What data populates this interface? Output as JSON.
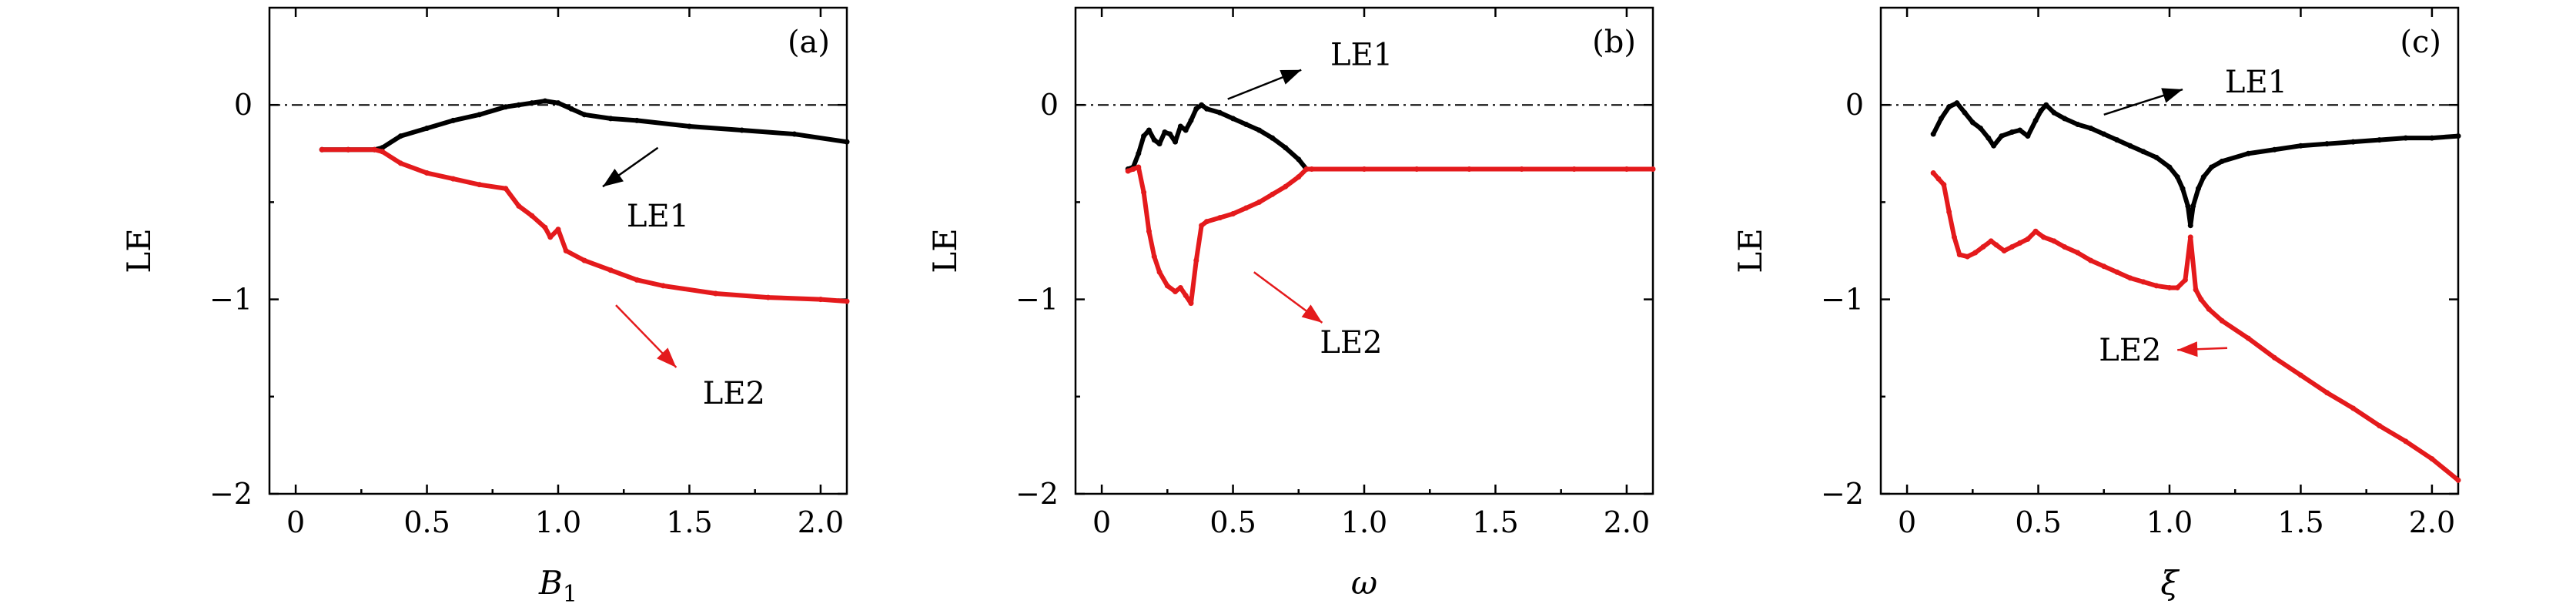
{
  "chart_data": [
    {
      "type": "line",
      "panel_label": "(a)",
      "xlabel": "B",
      "xlabel_sub": "1",
      "xlabel_italic": true,
      "ylabel": "LE",
      "xlim": [
        -0.1,
        2.1
      ],
      "ylim": [
        -2,
        0.5
      ],
      "xticks": [
        0,
        0.5,
        1.0,
        1.5,
        2.0
      ],
      "xtick_labels": [
        "0",
        "0.5",
        "1.0",
        "1.5",
        "2.0"
      ],
      "yticks": [
        -2,
        -1,
        0
      ],
      "ytick_labels": [
        "−2",
        "−1",
        "0"
      ],
      "reference_line_y": 0,
      "series": [
        {
          "name": "LE1",
          "color": "#000000",
          "x": [
            0.1,
            0.2,
            0.3,
            0.33,
            0.4,
            0.5,
            0.6,
            0.7,
            0.8,
            0.85,
            0.9,
            0.95,
            1.0,
            1.05,
            1.1,
            1.2,
            1.3,
            1.5,
            1.7,
            1.9,
            2.1
          ],
          "y": [
            -0.23,
            -0.23,
            -0.23,
            -0.22,
            -0.16,
            -0.12,
            -0.08,
            -0.05,
            -0.01,
            0.0,
            0.01,
            0.02,
            0.01,
            -0.02,
            -0.05,
            -0.07,
            -0.08,
            -0.11,
            -0.13,
            -0.15,
            -0.19
          ]
        },
        {
          "name": "LE2",
          "color": "#e41a1c",
          "x": [
            0.1,
            0.2,
            0.3,
            0.33,
            0.4,
            0.5,
            0.6,
            0.7,
            0.8,
            0.85,
            0.9,
            0.95,
            0.97,
            1.0,
            1.03,
            1.1,
            1.2,
            1.3,
            1.4,
            1.6,
            1.8,
            2.0,
            2.1
          ],
          "y": [
            -0.23,
            -0.23,
            -0.23,
            -0.24,
            -0.3,
            -0.35,
            -0.38,
            -0.41,
            -0.43,
            -0.52,
            -0.57,
            -0.63,
            -0.68,
            -0.64,
            -0.75,
            -0.8,
            -0.85,
            -0.9,
            -0.93,
            -0.97,
            -0.99,
            -1.0,
            -1.01
          ]
        }
      ],
      "annotations": [
        {
          "text": "LE1",
          "color": "#000000",
          "text_at": [
            1.38,
            -0.57
          ],
          "arrow_from": [
            1.38,
            -0.22
          ],
          "arrow_to": [
            1.17,
            -0.42
          ]
        },
        {
          "text": "LE2",
          "color": "#e41a1c",
          "text_at": [
            1.67,
            -1.48
          ],
          "arrow_from": [
            1.22,
            -1.03
          ],
          "arrow_to": [
            1.45,
            -1.35
          ]
        }
      ]
    },
    {
      "type": "line",
      "panel_label": "(b)",
      "xlabel": "ω",
      "xlabel_italic": true,
      "ylabel": "LE",
      "xlim": [
        -0.1,
        2.1
      ],
      "ylim": [
        -2,
        0.5
      ],
      "xticks": [
        0,
        0.5,
        1.0,
        1.5,
        2.0
      ],
      "xtick_labels": [
        "0",
        "0.5",
        "1.0",
        "1.5",
        "2.0"
      ],
      "yticks": [
        -2,
        -1,
        0
      ],
      "ytick_labels": [
        "−2",
        "−1",
        "0"
      ],
      "reference_line_y": 0,
      "series": [
        {
          "name": "LE1",
          "color": "#000000",
          "x": [
            0.1,
            0.12,
            0.14,
            0.16,
            0.18,
            0.2,
            0.22,
            0.24,
            0.26,
            0.28,
            0.3,
            0.32,
            0.34,
            0.36,
            0.38,
            0.4,
            0.45,
            0.5,
            0.55,
            0.6,
            0.65,
            0.7,
            0.75,
            0.78
          ],
          "y": [
            -0.33,
            -0.32,
            -0.25,
            -0.16,
            -0.13,
            -0.18,
            -0.2,
            -0.14,
            -0.15,
            -0.19,
            -0.11,
            -0.13,
            -0.08,
            -0.02,
            0.0,
            -0.02,
            -0.04,
            -0.07,
            -0.1,
            -0.13,
            -0.17,
            -0.22,
            -0.28,
            -0.33
          ]
        },
        {
          "name": "LE2",
          "color": "#e41a1c",
          "x": [
            0.1,
            0.12,
            0.14,
            0.16,
            0.18,
            0.2,
            0.22,
            0.25,
            0.28,
            0.3,
            0.32,
            0.34,
            0.36,
            0.38,
            0.4,
            0.45,
            0.5,
            0.55,
            0.6,
            0.65,
            0.7,
            0.75,
            0.78,
            0.8,
            1.0,
            1.2,
            1.4,
            1.6,
            1.8,
            2.0,
            2.1
          ],
          "y": [
            -0.34,
            -0.33,
            -0.32,
            -0.45,
            -0.65,
            -0.78,
            -0.86,
            -0.93,
            -0.96,
            -0.94,
            -0.98,
            -1.02,
            -0.8,
            -0.62,
            -0.6,
            -0.58,
            -0.56,
            -0.53,
            -0.5,
            -0.46,
            -0.42,
            -0.37,
            -0.33,
            -0.33,
            -0.33,
            -0.33,
            -0.33,
            -0.33,
            -0.33,
            -0.33,
            -0.33
          ]
        }
      ],
      "annotations": [
        {
          "text": "LE1",
          "color": "#000000",
          "text_at": [
            0.99,
            0.26
          ],
          "arrow_from": [
            0.48,
            0.03
          ],
          "arrow_to": [
            0.76,
            0.18
          ]
        },
        {
          "text": "LE2",
          "color": "#e41a1c",
          "text_at": [
            0.95,
            -1.22
          ],
          "arrow_from": [
            0.58,
            -0.86
          ],
          "arrow_to": [
            0.84,
            -1.12
          ]
        }
      ]
    },
    {
      "type": "line",
      "panel_label": "(c)",
      "xlabel": "ξ",
      "xlabel_italic": true,
      "ylabel": "LE",
      "xlim": [
        -0.1,
        2.1
      ],
      "ylim": [
        -2,
        0.5
      ],
      "xticks": [
        0,
        0.5,
        1.0,
        1.5,
        2.0
      ],
      "xtick_labels": [
        "0",
        "0.5",
        "1.0",
        "1.5",
        "2.0"
      ],
      "yticks": [
        -2,
        -1,
        0
      ],
      "ytick_labels": [
        "−2",
        "−1",
        "0"
      ],
      "reference_line_y": 0,
      "series": [
        {
          "name": "LE1",
          "color": "#000000",
          "x": [
            0.1,
            0.13,
            0.16,
            0.19,
            0.22,
            0.25,
            0.28,
            0.31,
            0.33,
            0.36,
            0.4,
            0.43,
            0.46,
            0.49,
            0.51,
            0.53,
            0.56,
            0.6,
            0.65,
            0.7,
            0.75,
            0.8,
            0.85,
            0.9,
            0.95,
            1.0,
            1.03,
            1.05,
            1.07,
            1.08,
            1.09,
            1.11,
            1.13,
            1.16,
            1.2,
            1.3,
            1.4,
            1.5,
            1.6,
            1.7,
            1.8,
            1.9,
            2.0,
            2.1
          ],
          "y": [
            -0.15,
            -0.07,
            -0.01,
            0.01,
            -0.04,
            -0.09,
            -0.12,
            -0.17,
            -0.21,
            -0.16,
            -0.14,
            -0.13,
            -0.16,
            -0.08,
            -0.03,
            0.0,
            -0.04,
            -0.07,
            -0.1,
            -0.12,
            -0.15,
            -0.18,
            -0.21,
            -0.24,
            -0.27,
            -0.32,
            -0.37,
            -0.43,
            -0.52,
            -0.62,
            -0.52,
            -0.43,
            -0.37,
            -0.32,
            -0.29,
            -0.25,
            -0.23,
            -0.21,
            -0.2,
            -0.19,
            -0.18,
            -0.17,
            -0.17,
            -0.16
          ]
        },
        {
          "name": "LE2",
          "color": "#e41a1c",
          "x": [
            0.1,
            0.12,
            0.14,
            0.16,
            0.18,
            0.2,
            0.23,
            0.26,
            0.29,
            0.32,
            0.34,
            0.37,
            0.4,
            0.43,
            0.46,
            0.49,
            0.52,
            0.56,
            0.6,
            0.65,
            0.7,
            0.75,
            0.8,
            0.85,
            0.9,
            0.95,
            1.0,
            1.03,
            1.06,
            1.08,
            1.1,
            1.12,
            1.15,
            1.2,
            1.3,
            1.4,
            1.5,
            1.6,
            1.7,
            1.8,
            1.9,
            2.0,
            2.1
          ],
          "y": [
            -0.35,
            -0.38,
            -0.41,
            -0.55,
            -0.68,
            -0.77,
            -0.78,
            -0.76,
            -0.73,
            -0.7,
            -0.72,
            -0.75,
            -0.73,
            -0.71,
            -0.69,
            -0.65,
            -0.68,
            -0.7,
            -0.73,
            -0.76,
            -0.8,
            -0.83,
            -0.86,
            -0.89,
            -0.91,
            -0.93,
            -0.94,
            -0.94,
            -0.9,
            -0.68,
            -0.95,
            -1.0,
            -1.05,
            -1.11,
            -1.2,
            -1.3,
            -1.39,
            -1.48,
            -1.56,
            -1.65,
            -1.73,
            -1.82,
            -1.93
          ]
        }
      ],
      "annotations": [
        {
          "text": "LE1",
          "color": "#000000",
          "text_at": [
            1.33,
            0.12
          ],
          "arrow_from": [
            0.75,
            -0.05
          ],
          "arrow_to": [
            1.05,
            0.08
          ]
        },
        {
          "text": "LE2",
          "color": "#e41a1c",
          "text_at": [
            0.85,
            -1.26
          ],
          "arrow_from": [
            1.22,
            -1.25
          ],
          "arrow_to": [
            1.03,
            -1.26
          ]
        }
      ]
    }
  ]
}
